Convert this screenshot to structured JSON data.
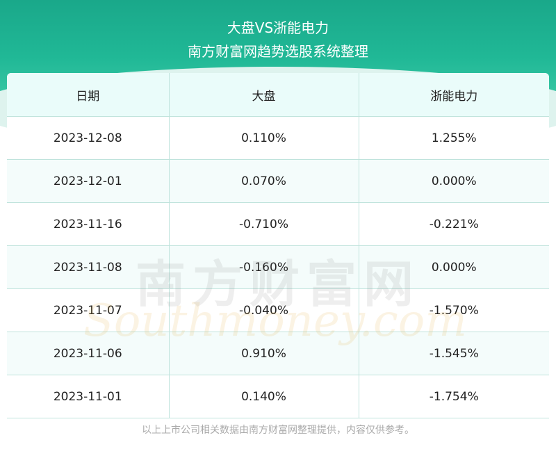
{
  "header": {
    "title": "大盘VS浙能电力",
    "subtitle": "南方财富网趋势选股系统整理"
  },
  "table": {
    "columns": [
      "日期",
      "大盘",
      "浙能电力"
    ],
    "rows": [
      [
        "2023-12-08",
        "0.110%",
        "1.255%"
      ],
      [
        "2023-12-01",
        "0.070%",
        "0.000%"
      ],
      [
        "2023-11-16",
        "-0.710%",
        "-0.221%"
      ],
      [
        "2023-11-08",
        "-0.160%",
        "0.000%"
      ],
      [
        "2023-11-07",
        "-0.040%",
        "-1.570%"
      ],
      [
        "2023-11-06",
        "0.910%",
        "-1.545%"
      ],
      [
        "2023-11-01",
        "0.140%",
        "-1.754%"
      ]
    ]
  },
  "watermark": {
    "cn": "南方财富网",
    "en": "Southmoney.com"
  },
  "footer": {
    "note": "以上上市公司相关数据由南方财富网整理提供，内容仅供参考。"
  },
  "colors": {
    "header_bg": "#20b896",
    "table_header_bg": "#eafcfa",
    "grid_line": "#bfe3dc"
  }
}
